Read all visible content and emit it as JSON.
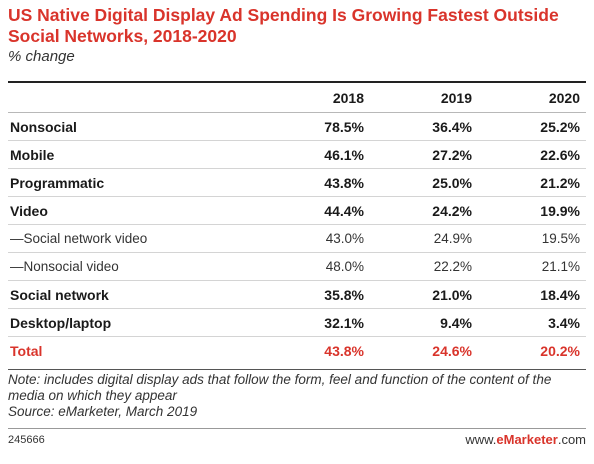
{
  "chart_data": {
    "type": "table",
    "title": "US Native Digital Display Ad Spending Is Growing Fastest Outside Social Networks, 2018-2020",
    "subtitle": "% change",
    "columns": [
      "2018",
      "2019",
      "2020"
    ],
    "rows": [
      {
        "label": "Nonsocial",
        "values": [
          "78.5%",
          "36.4%",
          "25.2%"
        ],
        "style": "bold"
      },
      {
        "label": "Mobile",
        "values": [
          "46.1%",
          "27.2%",
          "22.6%"
        ],
        "style": "bold"
      },
      {
        "label": "Programmatic",
        "values": [
          "43.8%",
          "25.0%",
          "21.2%"
        ],
        "style": "bold"
      },
      {
        "label": "Video",
        "values": [
          "44.4%",
          "24.2%",
          "19.9%"
        ],
        "style": "bold"
      },
      {
        "label": "—Social network video",
        "values": [
          "43.0%",
          "24.9%",
          "19.5%"
        ],
        "style": "sub"
      },
      {
        "label": "—Nonsocial video",
        "values": [
          "48.0%",
          "22.2%",
          "21.1%"
        ],
        "style": "sub"
      },
      {
        "label": "Social network",
        "values": [
          "35.8%",
          "21.0%",
          "18.4%"
        ],
        "style": "bold"
      },
      {
        "label": "Desktop/laptop",
        "values": [
          "32.1%",
          "9.4%",
          "3.4%"
        ],
        "style": "bold"
      },
      {
        "label": "Total",
        "values": [
          "43.8%",
          "24.6%",
          "20.2%"
        ],
        "style": "total"
      }
    ],
    "note": "Note: includes digital display ads that follow the form, feel and function of the content of the media on which they appear",
    "source": "Source: eMarketer, March 2019"
  },
  "footer": {
    "chart_id": "245666",
    "brand_prefix": "www.",
    "brand_name": "eMarketer",
    "brand_suffix": ".com"
  },
  "colors": {
    "accent": "#d9342b",
    "text": "#1a1a1a"
  }
}
